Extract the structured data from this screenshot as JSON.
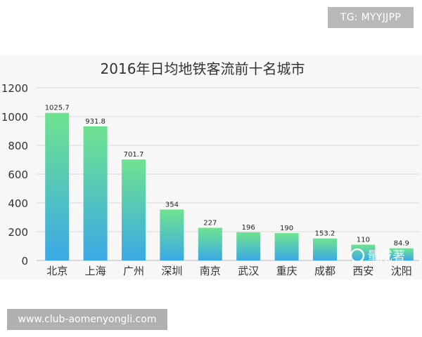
{
  "overlays": {
    "tg_label": "TG: MYYJJPP",
    "url_label": "www.club-aomenyongli.com",
    "watermark_text": "量成著"
  },
  "colors": {
    "bar_top": "#6fe38f",
    "bar_bottom": "#3aa9e6",
    "grid": "#d9d9d9",
    "axis_text": "#333333",
    "title_text": "#333333"
  },
  "chart_data": {
    "type": "bar",
    "title": "2016年日均地铁客流前十名城市",
    "xlabel": "",
    "ylabel": "",
    "categories": [
      "北京",
      "上海",
      "广州",
      "深圳",
      "南京",
      "武汉",
      "重庆",
      "成都",
      "西安",
      "沈阳"
    ],
    "values": [
      1025.7,
      931.8,
      701.7,
      354,
      227,
      196,
      190,
      153.2,
      110,
      84.9
    ],
    "value_labels": [
      "1025.7",
      "931.8",
      "701.7",
      "354",
      "227",
      "196",
      "190",
      "153.2",
      "110",
      "84.9"
    ],
    "ylim": [
      0,
      1200
    ],
    "yticks": [
      "0",
      "200",
      "400",
      "600",
      "800",
      "1000",
      "1200"
    ],
    "grid": true,
    "legend": "none"
  }
}
